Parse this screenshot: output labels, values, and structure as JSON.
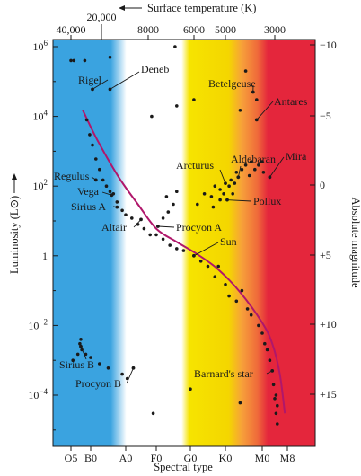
{
  "chart_data": {
    "type": "scatter",
    "top_axis_title": "Surface temperature (K)",
    "xlabel": "Spectral type",
    "ylabel": "Luminosity (L⊙)",
    "y2label": "Absolute magnitude",
    "spectral_ticks": [
      "O5",
      "B0",
      "A0",
      "F0",
      "G0",
      "K0",
      "M0",
      "M8"
    ],
    "temperature_ticks": [
      "40,000",
      "20,000",
      "8000",
      "6000",
      "5000",
      "3000"
    ],
    "luminosity_ticks": [
      {
        "base": "10",
        "exp": "6",
        "value": 1000000
      },
      {
        "base": "10",
        "exp": "4",
        "value": 10000
      },
      {
        "base": "10",
        "exp": "2",
        "value": 100
      },
      {
        "base": "1",
        "exp": "",
        "value": 1
      },
      {
        "base": "10",
        "exp": "−2",
        "value": 0.01
      },
      {
        "base": "10",
        "exp": "−4",
        "value": 0.0001
      }
    ],
    "magnitude_ticks": [
      "−10",
      "−5",
      "0",
      "+5",
      "+10",
      "+15"
    ],
    "ylim": [
      6e-06,
      2000000
    ],
    "y_scale": "log",
    "grid": false,
    "band_colors": [
      "#3aa3e0",
      "#ffffff",
      "#f6e400",
      "#f7a13a",
      "#e4263c"
    ],
    "main_sequence_color": "#b0176b",
    "point_color": "#1a1a1a",
    "main_sequence_curve": [
      {
        "x": 0.6,
        "L": 15000
      },
      {
        "x": 1.2,
        "L": 2000
      },
      {
        "x": 1.8,
        "L": 180
      },
      {
        "x": 2.4,
        "L": 30
      },
      {
        "x": 3.0,
        "L": 6
      },
      {
        "x": 3.6,
        "L": 2.5
      },
      {
        "x": 4.2,
        "L": 1.1
      },
      {
        "x": 4.8,
        "L": 0.4
      },
      {
        "x": 5.4,
        "L": 0.09
      },
      {
        "x": 6.0,
        "L": 0.012
      },
      {
        "x": 6.4,
        "L": 0.003
      },
      {
        "x": 6.7,
        "L": 0.0004
      },
      {
        "x": 6.9,
        "L": 3e-05
      }
    ],
    "stars": [
      {
        "name": "Rigel",
        "x": 1.05,
        "L": 60000
      },
      {
        "name": "Deneb",
        "x": 1.55,
        "L": 60000
      },
      {
        "name": "Betelgeuse",
        "x": 5.75,
        "L": 50000
      },
      {
        "name": "Antares",
        "x": 5.85,
        "L": 8000
      },
      {
        "name": "Mira",
        "x": 6.3,
        "L": 180
      },
      {
        "name": "Aldebaran",
        "x": 5.35,
        "L": 180
      },
      {
        "name": "Arcturus",
        "x": 5.0,
        "L": 120
      },
      {
        "name": "Pollux",
        "x": 5.05,
        "L": 40
      },
      {
        "name": "Regulus",
        "x": 1.15,
        "L": 150
      },
      {
        "name": "Vega",
        "x": 1.6,
        "L": 55
      },
      {
        "name": "Sirius A",
        "x": 1.75,
        "L": 25
      },
      {
        "name": "Altair",
        "x": 2.5,
        "L": 11
      },
      {
        "name": "Procyon A",
        "x": 3.05,
        "L": 7
      },
      {
        "name": "Sun",
        "x": 4.1,
        "L": 1
      },
      {
        "name": "Sirius B",
        "x": 0.5,
        "L": 0.0025
      },
      {
        "name": "Procyon B",
        "x": 2.25,
        "L": 0.0006
      },
      {
        "name": "Barnard's star",
        "x": 6.4,
        "L": 0.0005
      }
    ],
    "extra_points": [
      {
        "x": 0.0,
        "L": 400000
      },
      {
        "x": 0.15,
        "L": 400000
      },
      {
        "x": 0.7,
        "L": 400000
      },
      {
        "x": 1.55,
        "L": 500000
      },
      {
        "x": 3.55,
        "L": 1000000
      },
      {
        "x": 5.55,
        "L": 200000
      },
      {
        "x": 2.85,
        "L": 10000
      },
      {
        "x": 3.6,
        "L": 20000
      },
      {
        "x": 4.1,
        "L": 30000
      },
      {
        "x": 5.4,
        "L": 15000
      },
      {
        "x": 5.85,
        "L": 30000
      },
      {
        "x": 0.8,
        "L": 8000
      },
      {
        "x": 0.95,
        "L": 3000
      },
      {
        "x": 1.05,
        "L": 1500
      },
      {
        "x": 1.15,
        "L": 600
      },
      {
        "x": 1.25,
        "L": 300
      },
      {
        "x": 1.35,
        "L": 150
      },
      {
        "x": 1.45,
        "L": 100
      },
      {
        "x": 1.55,
        "L": 70
      },
      {
        "x": 1.65,
        "L": 60
      },
      {
        "x": 1.75,
        "L": 35
      },
      {
        "x": 1.9,
        "L": 20
      },
      {
        "x": 2.0,
        "L": 15
      },
      {
        "x": 2.2,
        "L": 12
      },
      {
        "x": 2.4,
        "L": 8
      },
      {
        "x": 2.6,
        "L": 6
      },
      {
        "x": 2.8,
        "L": 4
      },
      {
        "x": 3.0,
        "L": 4
      },
      {
        "x": 3.2,
        "L": 3
      },
      {
        "x": 3.4,
        "L": 2
      },
      {
        "x": 3.6,
        "L": 1.6
      },
      {
        "x": 3.8,
        "L": 1.4
      },
      {
        "x": 3.3,
        "L": 50
      },
      {
        "x": 3.5,
        "L": 30
      },
      {
        "x": 3.6,
        "L": 70
      },
      {
        "x": 3.2,
        "L": 12
      },
      {
        "x": 3.35,
        "L": 18
      },
      {
        "x": 4.3,
        "L": 0.7
      },
      {
        "x": 4.5,
        "L": 0.5
      },
      {
        "x": 4.7,
        "L": 0.25
      },
      {
        "x": 4.8,
        "L": 0.5
      },
      {
        "x": 5.0,
        "L": 0.15
      },
      {
        "x": 5.1,
        "L": 0.07
      },
      {
        "x": 5.3,
        "L": 0.05
      },
      {
        "x": 5.45,
        "L": 0.1
      },
      {
        "x": 5.6,
        "L": 0.03
      },
      {
        "x": 5.7,
        "L": 0.02
      },
      {
        "x": 5.9,
        "L": 0.01
      },
      {
        "x": 6.0,
        "L": 0.006
      },
      {
        "x": 6.1,
        "L": 0.003
      },
      {
        "x": 6.2,
        "L": 0.002
      },
      {
        "x": 6.3,
        "L": 0.001
      },
      {
        "x": 6.45,
        "L": 0.0002
      },
      {
        "x": 6.55,
        "L": 0.0001
      },
      {
        "x": 6.6,
        "L": 5e-05
      },
      {
        "x": 6.55,
        "L": 3e-05
      },
      {
        "x": 6.6,
        "L": 1.5e-05
      },
      {
        "x": 6.5,
        "L": 8e-05
      },
      {
        "x": 4.2,
        "L": 30
      },
      {
        "x": 4.4,
        "L": 60
      },
      {
        "x": 4.6,
        "L": 50
      },
      {
        "x": 4.7,
        "L": 100
      },
      {
        "x": 4.85,
        "L": 80
      },
      {
        "x": 4.95,
        "L": 60
      },
      {
        "x": 5.1,
        "L": 100
      },
      {
        "x": 5.15,
        "L": 150
      },
      {
        "x": 5.25,
        "L": 120
      },
      {
        "x": 5.3,
        "L": 250
      },
      {
        "x": 5.45,
        "L": 300
      },
      {
        "x": 5.55,
        "L": 400
      },
      {
        "x": 5.65,
        "L": 200
      },
      {
        "x": 5.7,
        "L": 500
      },
      {
        "x": 5.8,
        "L": 300
      },
      {
        "x": 5.9,
        "L": 400
      },
      {
        "x": 6.0,
        "L": 500
      },
      {
        "x": 6.05,
        "L": 250
      },
      {
        "x": 4.85,
        "L": 40
      },
      {
        "x": 5.2,
        "L": 60
      },
      {
        "x": 4.65,
        "L": 25
      },
      {
        "x": 0.1,
        "L": 0.001
      },
      {
        "x": 0.35,
        "L": 0.0015
      },
      {
        "x": 0.55,
        "L": 0.002
      },
      {
        "x": 0.75,
        "L": 0.0015
      },
      {
        "x": 1.0,
        "L": 0.0012
      },
      {
        "x": 1.25,
        "L": 0.0008
      },
      {
        "x": 1.5,
        "L": 0.0006
      },
      {
        "x": 1.9,
        "L": 0.0004
      },
      {
        "x": 2.05,
        "L": 0.0003
      },
      {
        "x": 4.0,
        "L": 0.00015
      },
      {
        "x": 2.9,
        "L": 3e-05
      },
      {
        "x": 5.4,
        "L": 6e-05
      },
      {
        "x": 0.5,
        "L": 0.004
      },
      {
        "x": 0.45,
        "L": 0.003
      }
    ]
  }
}
